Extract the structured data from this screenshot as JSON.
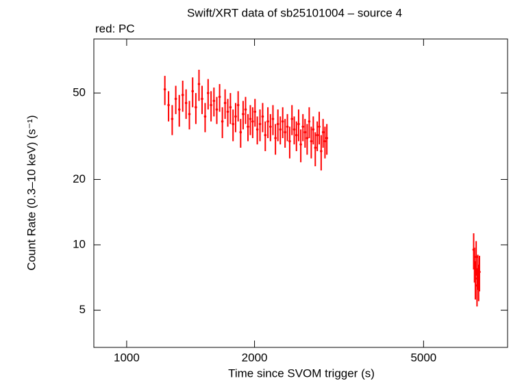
{
  "chart_data": {
    "type": "scatter",
    "title": "Swift/XRT data of sb25101004 – source 4",
    "annotation": "red: PC",
    "x_label": "Time since SVOM trigger (s)",
    "y_label": "Count Rate (0.3–10 keV) (s⁻¹)",
    "log_x": true,
    "log_y": true,
    "xlim": [
      837,
      7884
    ],
    "ylim": [
      3.37,
      88.7
    ],
    "xticks": [
      1000,
      2000,
      5000
    ],
    "yticks": [
      5,
      10,
      20,
      50
    ],
    "series": [
      {
        "color": "#ff0000",
        "x": [
          1230,
          1255,
          1280,
          1305,
          1330,
          1355,
          1380,
          1405,
          1430,
          1455,
          1480,
          1505,
          1530,
          1555,
          1580,
          1605,
          1630,
          1655,
          1680,
          1705,
          1730,
          1755,
          1780,
          1805,
          1830,
          1855,
          1880,
          1905,
          1930,
          1955,
          1980,
          2005,
          2030,
          2060,
          2090,
          2120,
          2150,
          2180,
          2210,
          2240,
          2270,
          2300,
          2330,
          2360,
          2390,
          2420,
          2450,
          2480,
          2510,
          2540,
          2570,
          2600,
          2630,
          2660,
          2690,
          2720,
          2750,
          2780,
          2810,
          2840,
          2870,
          2900,
          2930,
          2960,
          6560,
          6590,
          6620,
          6650,
          6680,
          6710,
          6740,
          6770
        ],
        "values": [
          52,
          44,
          38,
          47,
          42,
          49,
          45,
          40,
          51,
          43,
          55,
          47,
          39,
          50,
          44,
          46,
          42,
          48,
          37,
          45,
          41,
          43,
          36,
          39,
          44,
          33,
          40,
          42,
          35,
          38,
          37,
          41,
          34,
          36,
          39,
          32,
          37,
          35,
          38,
          31,
          36,
          34,
          37,
          33,
          35,
          30,
          38,
          34,
          32,
          36,
          29,
          35,
          33,
          31,
          37,
          30,
          34,
          28,
          32,
          35,
          27,
          33,
          30,
          31,
          9.5,
          8.2,
          7.0,
          8.8,
          6.5,
          7.6,
          6.8,
          7.5
        ],
        "errors": [
          8,
          7,
          6,
          7,
          7,
          8,
          7,
          6,
          8,
          7,
          9,
          7,
          6,
          8,
          7,
          7,
          6,
          7,
          6,
          7,
          6,
          7,
          6,
          6,
          7,
          5,
          6,
          6,
          5,
          6,
          6,
          6,
          5,
          6,
          6,
          5,
          6,
          5,
          6,
          5,
          6,
          5,
          6,
          5,
          5,
          5,
          6,
          5,
          5,
          6,
          5,
          5,
          5,
          5,
          6,
          5,
          5,
          5,
          5,
          6,
          5,
          5,
          5,
          5,
          1.8,
          1.5,
          1.4,
          1.6,
          1.3,
          1.4,
          1.3,
          1.4
        ]
      }
    ]
  }
}
